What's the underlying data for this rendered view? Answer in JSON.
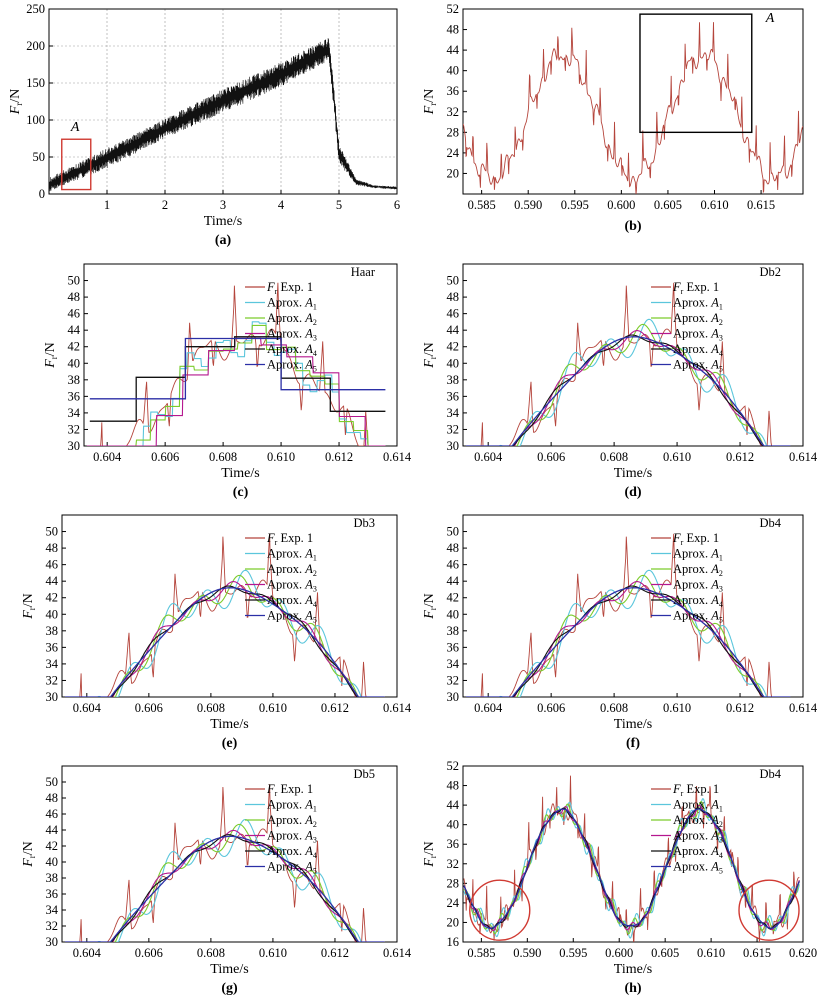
{
  "figure": {
    "series_colors": {
      "exp": "#b5453c",
      "A1": "#5bc6dc",
      "A2": "#7ccc2c",
      "A3": "#b5178f",
      "A4": "#111111",
      "A5": "#2b2fa6"
    }
  },
  "chart_data": [
    {
      "id": "a",
      "type": "line",
      "caption": "(a)",
      "xlabel": "Time/s",
      "ylabel_main": "F",
      "ylabel_sub": "r",
      "ylabel_unit": "/N",
      "xlim": [
        0,
        6
      ],
      "ylim": [
        0,
        250
      ],
      "xticks": [
        1,
        2,
        3,
        4,
        5,
        6
      ],
      "xtick_labels": [
        "1",
        "2",
        "3",
        "4",
        "5",
        "6"
      ],
      "yticks": [
        0,
        50,
        100,
        150,
        200,
        250
      ],
      "ytick_labels": [
        "0",
        "50",
        "100",
        "150",
        "200",
        "250"
      ],
      "grid": true,
      "series": [
        {
          "key": "exp",
          "color": "#000000",
          "envelope": {
            "x": [
              0,
              1,
              2,
              3,
              4,
              4.83,
              5.0,
              5.3,
              5.6,
              6.0
            ],
            "y_low": [
              3,
              35,
              75,
              110,
              145,
              180,
              40,
              12,
              8,
              6
            ],
            "y_high": [
              22,
              62,
              102,
              142,
              178,
              212,
              70,
              20,
              12,
              10
            ]
          }
        }
      ],
      "annotations": [
        {
          "text": "A",
          "x": 0.45,
          "y": 85
        }
      ],
      "highlight_box": {
        "x": [
          0.22,
          0.72
        ],
        "y": [
          6,
          74
        ],
        "color": "#d03a32"
      }
    },
    {
      "id": "b",
      "type": "line",
      "caption": "(b)",
      "xlabel": "",
      "ylabel_main": "F",
      "ylabel_sub": "r",
      "ylabel_unit": "/N",
      "xlim": [
        0.583,
        0.6195
      ],
      "ylim": [
        16,
        52
      ],
      "xticks": [
        0.585,
        0.59,
        0.595,
        0.6,
        0.605,
        0.61,
        0.615
      ],
      "xtick_labels": [
        "0.585",
        "0.590",
        "0.595",
        "0.600",
        "0.605",
        "0.610",
        "0.615"
      ],
      "yticks": [
        20,
        24,
        28,
        32,
        36,
        40,
        44,
        48,
        52
      ],
      "ytick_labels": [
        "20",
        "24",
        "28",
        "32",
        "36",
        "40",
        "44",
        "48",
        "52"
      ],
      "grid": false,
      "series": [
        {
          "key": "exp",
          "color": "#b5453c"
        }
      ],
      "annotations": [
        {
          "text": "A",
          "x": 0.6155,
          "y": 49.5
        }
      ],
      "highlight_box": {
        "x": [
          0.602,
          0.614
        ],
        "y": [
          28,
          51
        ],
        "color": "#000000"
      }
    },
    {
      "id": "c",
      "type": "line",
      "caption": "(c)",
      "wavelet": "Haar",
      "xlabel": "Time/s",
      "ylabel_main": "F",
      "ylabel_sub": "r",
      "ylabel_unit": "/N",
      "xlim": [
        0.6032,
        0.614
      ],
      "ylim": [
        30,
        52
      ],
      "xticks": [
        0.604,
        0.606,
        0.608,
        0.61,
        0.612,
        0.614
      ],
      "xtick_labels": [
        "0.604",
        "0.606",
        "0.608",
        "0.610",
        "0.612",
        "0.614"
      ],
      "yticks": [
        30,
        32,
        34,
        36,
        38,
        40,
        42,
        44,
        46,
        48,
        50
      ],
      "ytick_labels": [
        "30",
        "32",
        "34",
        "36",
        "38",
        "40",
        "42",
        "44",
        "46",
        "48",
        "50"
      ],
      "legend": {
        "title": "Haar",
        "entries": [
          {
            "key": "exp",
            "main": "F",
            "sub": "r",
            "text": " Exp. 1"
          },
          {
            "key": "A1",
            "text": "Aprox. A",
            "sub": "1"
          },
          {
            "key": "A2",
            "text": "Aprox. A",
            "sub": "2"
          },
          {
            "key": "A3",
            "text": "Aprox. A",
            "sub": "3"
          },
          {
            "key": "A4",
            "text": "Aprox. A",
            "sub": "4"
          },
          {
            "key": "A5",
            "text": "Aprox. A",
            "sub": "5"
          }
        ]
      },
      "a5_steps": [
        [
          0.6034,
          0.6067,
          35.7
        ],
        [
          0.6067,
          0.61,
          43.0
        ],
        [
          0.61,
          0.6136,
          36.8
        ]
      ],
      "a4_steps": [
        [
          0.6034,
          0.605,
          33.0
        ],
        [
          0.605,
          0.6067,
          38.3
        ],
        [
          0.6067,
          0.6084,
          42.0
        ],
        [
          0.6084,
          0.61,
          43.2
        ],
        [
          0.61,
          0.6117,
          38.2
        ],
        [
          0.6117,
          0.6136,
          34.2
        ]
      ]
    },
    {
      "id": "d",
      "type": "line",
      "caption": "(d)",
      "wavelet": "Db2",
      "xlabel": "Time/s",
      "ylabel_main": "F",
      "ylabel_sub": "r",
      "ylabel_unit": "/N",
      "xlim": [
        0.6032,
        0.614
      ],
      "ylim": [
        30,
        52
      ],
      "xticks": [
        0.604,
        0.606,
        0.608,
        0.61,
        0.612,
        0.614
      ],
      "xtick_labels": [
        "0.604",
        "0.606",
        "0.608",
        "0.610",
        "0.612",
        "0.614"
      ],
      "yticks": [
        30,
        32,
        34,
        36,
        38,
        40,
        42,
        44,
        46,
        48,
        50
      ],
      "ytick_labels": [
        "30",
        "32",
        "34",
        "36",
        "38",
        "40",
        "42",
        "44",
        "46",
        "48",
        "50"
      ],
      "legend": {
        "title": "Db2",
        "entries": [
          {
            "key": "exp",
            "main": "F",
            "sub": "r",
            "text": " Exp. 1"
          },
          {
            "key": "A1",
            "text": "Aprox. A",
            "sub": "1"
          },
          {
            "key": "A2",
            "text": "Aprox. A",
            "sub": "2"
          },
          {
            "key": "A3",
            "text": "Aprox. A",
            "sub": "3"
          },
          {
            "key": "A4",
            "text": "Aprox. A",
            "sub": "4"
          },
          {
            "key": "A5",
            "text": "Aprox. A",
            "sub": "5"
          }
        ]
      }
    },
    {
      "id": "e",
      "type": "line",
      "caption": "(e)",
      "wavelet": "Db3",
      "xlabel": "Time/s",
      "ylabel_main": "F",
      "ylabel_sub": "r",
      "ylabel_unit": "/N",
      "xlim": [
        0.6032,
        0.614
      ],
      "ylim": [
        30,
        52
      ],
      "xticks": [
        0.604,
        0.606,
        0.608,
        0.61,
        0.612,
        0.614
      ],
      "xtick_labels": [
        "0.604",
        "0.606",
        "0.608",
        "0.610",
        "0.612",
        "0.614"
      ],
      "yticks": [
        30,
        32,
        34,
        36,
        38,
        40,
        42,
        44,
        46,
        48,
        50
      ],
      "ytick_labels": [
        "30",
        "32",
        "34",
        "36",
        "38",
        "40",
        "42",
        "44",
        "46",
        "48",
        "50"
      ],
      "legend": {
        "title": "Db3",
        "entries": [
          {
            "key": "exp",
            "main": "F",
            "sub": "r",
            "text": " Exp. 1"
          },
          {
            "key": "A1",
            "text": "Aprox. A",
            "sub": "1"
          },
          {
            "key": "A2",
            "text": "Aprox. A",
            "sub": "2"
          },
          {
            "key": "A3",
            "text": "Aprox. A",
            "sub": "3"
          },
          {
            "key": "A4",
            "text": "Aprox. A",
            "sub": "4"
          },
          {
            "key": "A5",
            "text": "Aprox. A",
            "sub": "5"
          }
        ]
      }
    },
    {
      "id": "f",
      "type": "line",
      "caption": "(f)",
      "wavelet": "Db4",
      "xlabel": "Time/s",
      "ylabel_main": "F",
      "ylabel_sub": "r",
      "ylabel_unit": "/N",
      "xlim": [
        0.6032,
        0.614
      ],
      "ylim": [
        30,
        52
      ],
      "xticks": [
        0.604,
        0.606,
        0.608,
        0.61,
        0.612,
        0.614
      ],
      "xtick_labels": [
        "0.604",
        "0.606",
        "0.608",
        "0.610",
        "0.612",
        "0.614"
      ],
      "yticks": [
        30,
        32,
        34,
        36,
        38,
        40,
        42,
        44,
        46,
        48,
        50
      ],
      "ytick_labels": [
        "30",
        "32",
        "34",
        "36",
        "38",
        "40",
        "42",
        "44",
        "46",
        "48",
        "50"
      ],
      "legend": {
        "title": "Db4",
        "entries": [
          {
            "key": "exp",
            "main": "F",
            "sub": "r",
            "text": " Exp. 1"
          },
          {
            "key": "A1",
            "text": "Aprox. A",
            "sub": "1"
          },
          {
            "key": "A2",
            "text": "Aprox. A",
            "sub": "2"
          },
          {
            "key": "A3",
            "text": "Aprox. A",
            "sub": "3"
          },
          {
            "key": "A4",
            "text": "Aprox. A",
            "sub": "4"
          },
          {
            "key": "A5",
            "text": "Aprox. A",
            "sub": "5"
          }
        ]
      }
    },
    {
      "id": "g",
      "type": "line",
      "caption": "(g)",
      "wavelet": "Db5",
      "xlabel": "Time/s",
      "ylabel_main": "F",
      "ylabel_sub": "r",
      "ylabel_unit": "/N",
      "xlim": [
        0.6032,
        0.614
      ],
      "ylim": [
        30,
        52
      ],
      "xticks": [
        0.604,
        0.606,
        0.608,
        0.61,
        0.612,
        0.614
      ],
      "xtick_labels": [
        "0.604",
        "0.606",
        "0.608",
        "0.610",
        "0.612",
        "0.614"
      ],
      "yticks": [
        30,
        32,
        34,
        36,
        38,
        40,
        42,
        44,
        46,
        48,
        50
      ],
      "ytick_labels": [
        "30",
        "32",
        "34",
        "36",
        "38",
        "40",
        "42",
        "44",
        "46",
        "48",
        "50"
      ],
      "legend": {
        "title": "Db5",
        "entries": [
          {
            "key": "exp",
            "main": "F",
            "sub": "r",
            "text": " Exp. 1"
          },
          {
            "key": "A1",
            "text": "Aprox. A",
            "sub": "1"
          },
          {
            "key": "A2",
            "text": "Aprox. A",
            "sub": "2"
          },
          {
            "key": "A3",
            "text": "Aprox. A",
            "sub": "3"
          },
          {
            "key": "A4",
            "text": "Aprox. A",
            "sub": "4"
          },
          {
            "key": "A5",
            "text": "Aprox. A",
            "sub": "5"
          }
        ]
      }
    },
    {
      "id": "h",
      "type": "line",
      "caption": "(h)",
      "wavelet": "Db4",
      "xlabel": "Time/s",
      "ylabel_main": "F",
      "ylabel_sub": "r",
      "ylabel_unit": "/N",
      "xlim": [
        0.583,
        0.62
      ],
      "ylim": [
        16,
        52
      ],
      "xticks": [
        0.585,
        0.59,
        0.595,
        0.6,
        0.605,
        0.61,
        0.615,
        0.62
      ],
      "xtick_labels": [
        "0.585",
        "0.590",
        "0.595",
        "0.600",
        "0.605",
        "0.610",
        "0.615",
        "0.620"
      ],
      "yticks": [
        16,
        20,
        24,
        28,
        32,
        36,
        40,
        44,
        48,
        52
      ],
      "ytick_labels": [
        "16",
        "20",
        "24",
        "28",
        "32",
        "36",
        "40",
        "44",
        "48",
        "52"
      ],
      "legend": {
        "title": "Db4",
        "entries": [
          {
            "key": "exp",
            "main": "F",
            "sub": "r",
            "text": " Exp. 1"
          },
          {
            "key": "A1",
            "text": "Aprox. A",
            "sub": "1"
          },
          {
            "key": "A2",
            "text": "Aprox. A",
            "sub": "2"
          },
          {
            "key": "A3",
            "text": "Aprox. A",
            "sub": "3"
          },
          {
            "key": "A4",
            "text": "Aprox. A",
            "sub": "4"
          },
          {
            "key": "A5",
            "text": "Aprox. A",
            "sub": "5"
          }
        ]
      },
      "circles": [
        {
          "x": 0.587,
          "y": 22.5
        },
        {
          "x": 0.6163,
          "y": 22.5
        }
      ],
      "circle_color": "#d03a32"
    }
  ]
}
